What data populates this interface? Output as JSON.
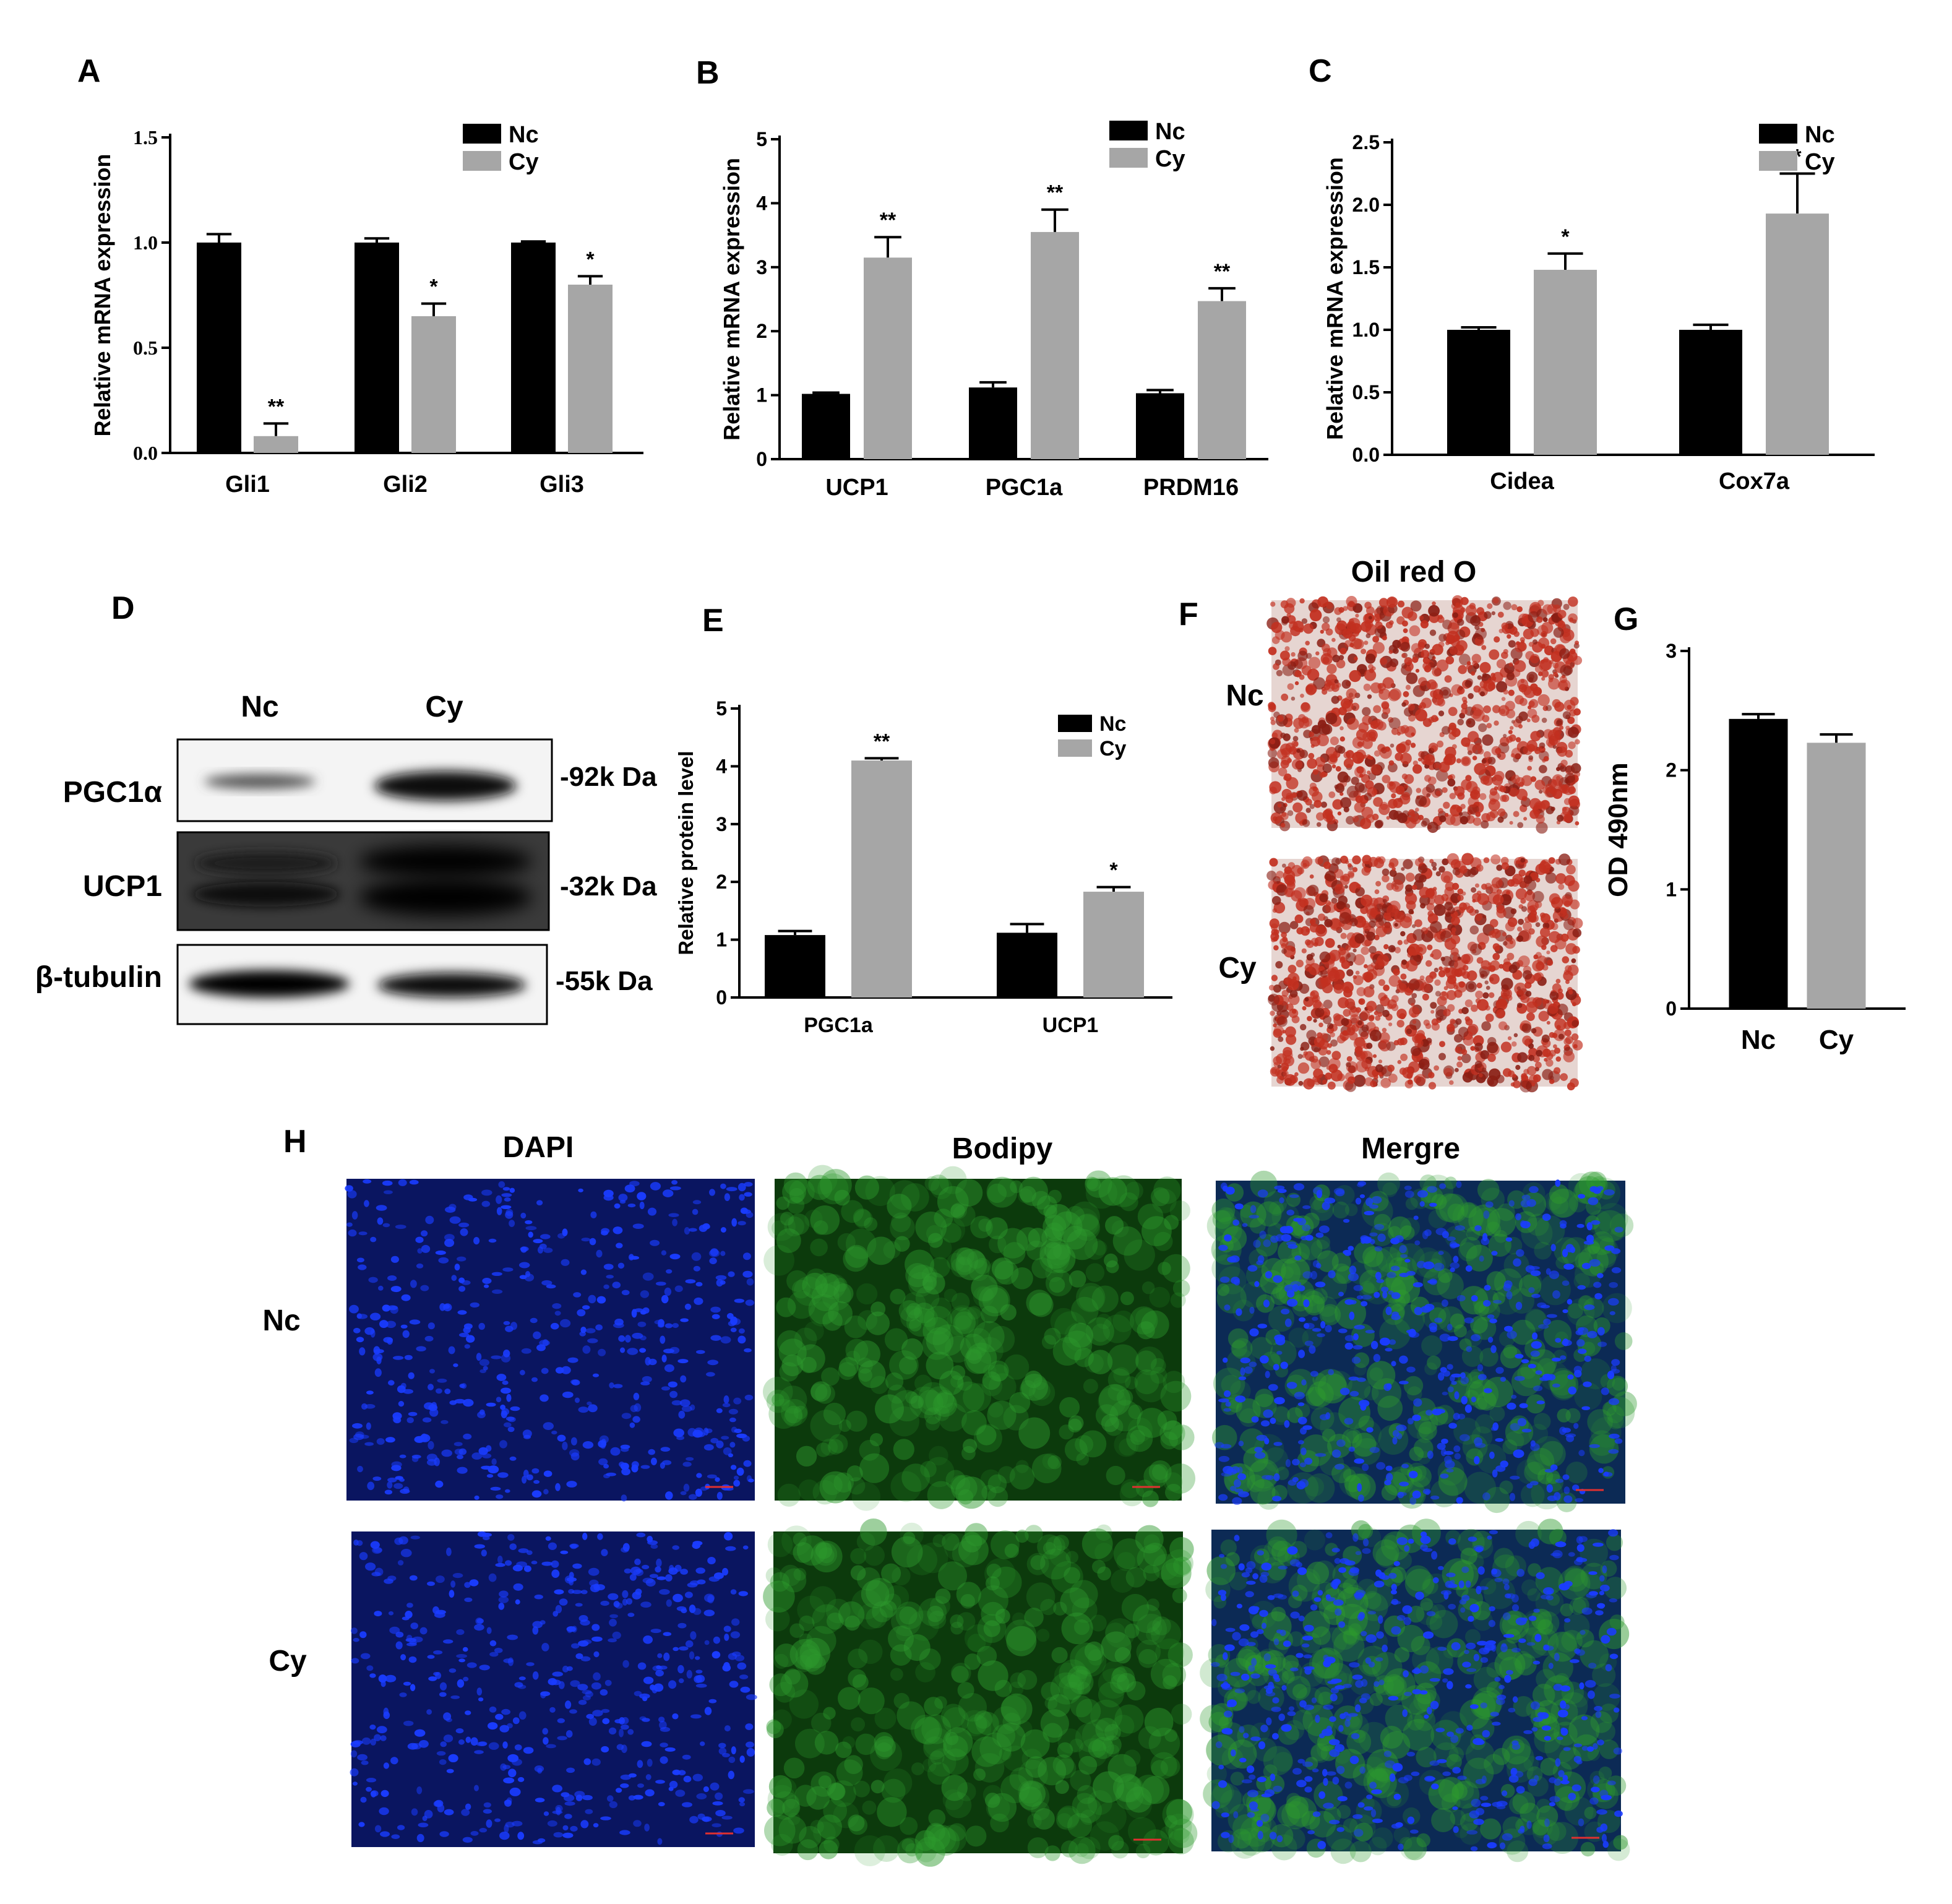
{
  "colors": {
    "nc": "#000000",
    "cy": "#a6a6a6",
    "oil_bg": "#e8d8d4",
    "oil_spot": "#c23020",
    "dapi": "#1a3cff",
    "dapi_bg": "#0a1560",
    "bodipy": "#2e9a2e",
    "bodipy_bg": "#0c3a0c",
    "merge_bg": "#0c2a55"
  },
  "legend": [
    "Nc",
    "Cy"
  ],
  "panels": {
    "A": "A",
    "B": "B",
    "C": "C",
    "D": "D",
    "E": "E",
    "F": "F",
    "G": "G",
    "H": "H"
  },
  "western": {
    "groups": [
      "Nc",
      "Cy"
    ],
    "rows": [
      {
        "protein": "PGC1α",
        "size": "-92k Da"
      },
      {
        "protein": "UCP1",
        "size": "-32k Da"
      },
      {
        "protein": "β-tubulin",
        "size": "-55k Da"
      }
    ]
  },
  "oil_red": {
    "title": "Oil red O",
    "rows": [
      "Nc",
      "Cy"
    ]
  },
  "fluorescence": {
    "columns": [
      "DAPI",
      "Bodipy",
      "Mergre"
    ],
    "rows": [
      "Nc",
      "Cy"
    ]
  },
  "chart_data": [
    {
      "panel": "A",
      "type": "bar",
      "categories": [
        "Gli1",
        "Gli2",
        "Gli3"
      ],
      "ylabel": "Relative mRNA expression",
      "ylim": [
        0,
        1.5
      ],
      "yticks": [
        "0.0",
        "0.5",
        "1.0",
        "1.5"
      ],
      "series": [
        {
          "name": "Nc",
          "values": [
            1.0,
            1.0,
            1.0
          ],
          "errors": [
            0.04,
            0.02,
            0.005
          ]
        },
        {
          "name": "Cy",
          "values": [
            0.08,
            0.65,
            0.8
          ],
          "errors": [
            0.06,
            0.06,
            0.04
          ]
        }
      ],
      "significance": [
        "**",
        "*",
        "*"
      ]
    },
    {
      "panel": "B",
      "type": "bar",
      "categories": [
        "UCP1",
        "PGC1a",
        "PRDM16"
      ],
      "ylabel": "Relative mRNA expression",
      "ylim": [
        0,
        5
      ],
      "yticks": [
        "0",
        "1",
        "2",
        "3",
        "4",
        "5"
      ],
      "series": [
        {
          "name": "Nc",
          "values": [
            1.02,
            1.12,
            1.03
          ],
          "errors": [
            0.02,
            0.08,
            0.05
          ]
        },
        {
          "name": "Cy",
          "values": [
            3.15,
            3.55,
            2.47
          ],
          "errors": [
            0.32,
            0.35,
            0.2
          ]
        }
      ],
      "significance": [
        "**",
        "**",
        "**"
      ]
    },
    {
      "panel": "C",
      "type": "bar",
      "categories": [
        "Cidea",
        "Cox7a"
      ],
      "ylabel": "Relative mRNA expression",
      "ylim": [
        0,
        2.5
      ],
      "yticks": [
        "0.0",
        "0.5",
        "1.0",
        "1.5",
        "2.0",
        "2.5"
      ],
      "series": [
        {
          "name": "Nc",
          "values": [
            1.0,
            1.0
          ],
          "errors": [
            0.02,
            0.04
          ]
        },
        {
          "name": "Cy",
          "values": [
            1.48,
            1.93
          ],
          "errors": [
            0.13,
            0.32
          ]
        }
      ],
      "significance": [
        "*",
        "*"
      ]
    },
    {
      "panel": "E",
      "type": "bar",
      "categories": [
        "PGC1a",
        "UCP1"
      ],
      "ylabel": "Relative protein level",
      "ylim": [
        0,
        5
      ],
      "yticks": [
        "0",
        "1",
        "2",
        "3",
        "4",
        "5"
      ],
      "series": [
        {
          "name": "Nc",
          "values": [
            1.08,
            1.12
          ],
          "errors": [
            0.07,
            0.15
          ]
        },
        {
          "name": "Cy",
          "values": [
            4.1,
            1.83
          ],
          "errors": [
            0.04,
            0.08
          ]
        }
      ],
      "significance": [
        "**",
        "*"
      ]
    },
    {
      "panel": "G",
      "type": "bar",
      "categories": [
        "Nc",
        "Cy"
      ],
      "ylabel": "OD 490nm",
      "ylim": [
        0,
        3
      ],
      "yticks": [
        "0",
        "1",
        "2",
        "3"
      ],
      "series": [
        {
          "name": "",
          "values": [
            2.43,
            2.23
          ],
          "errors": [
            0.04,
            0.07
          ]
        }
      ]
    }
  ]
}
